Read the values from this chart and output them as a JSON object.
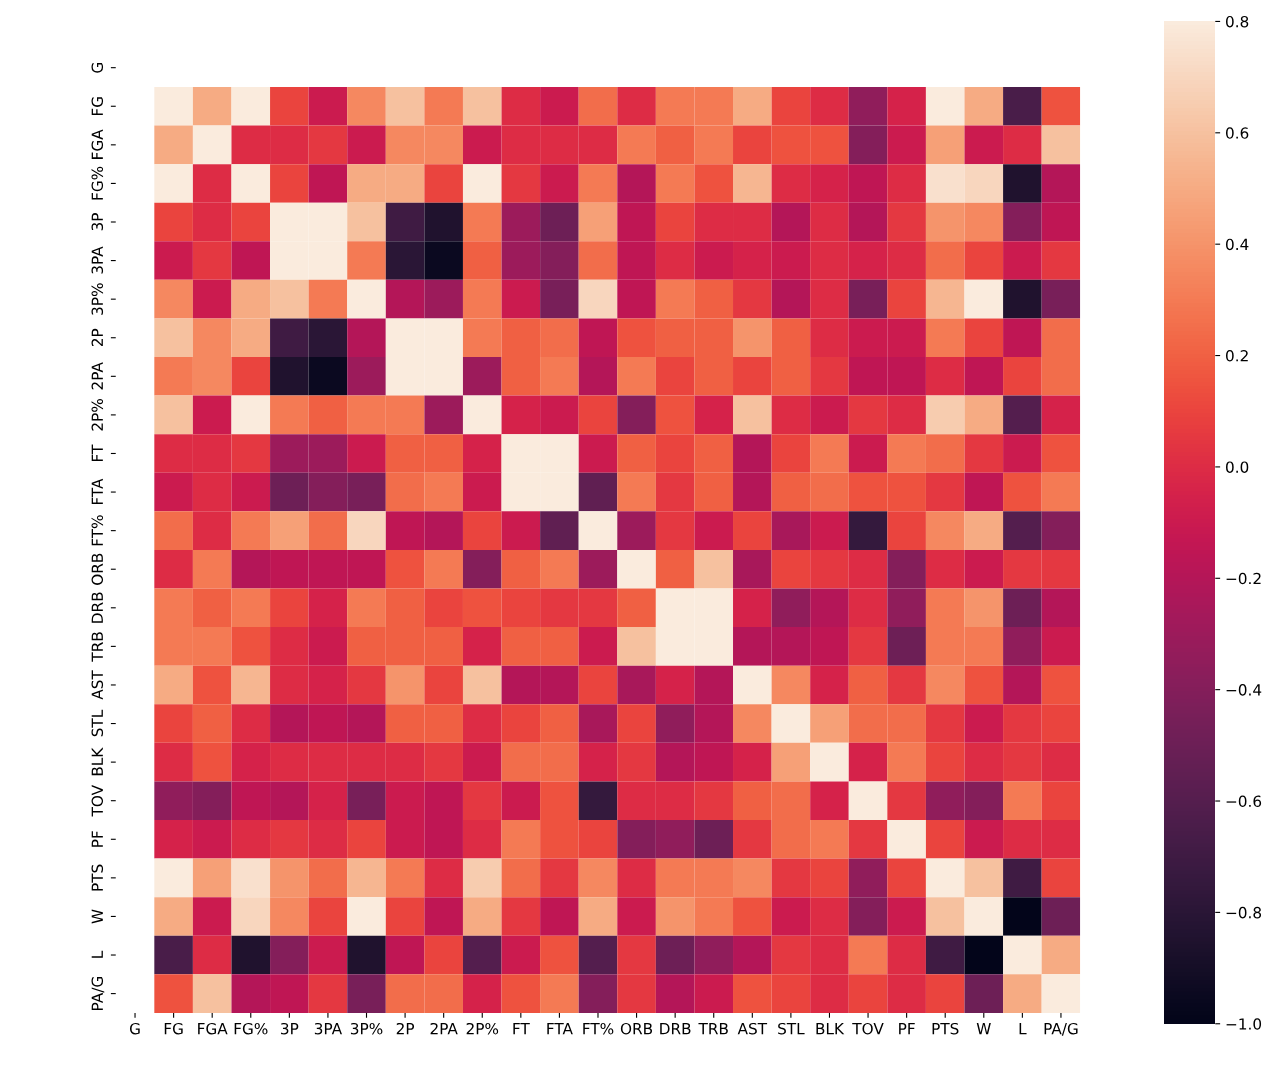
{
  "chart_data": {
    "type": "heatmap",
    "categories": [
      "G",
      "FG",
      "FGA",
      "FG%",
      "3P",
      "3PA",
      "3P%",
      "2P",
      "2PA",
      "2P%",
      "FT",
      "FTA",
      "FT%",
      "ORB",
      "DRB",
      "TRB",
      "AST",
      "STL",
      "BLK",
      "TOV",
      "PF",
      "PTS",
      "W",
      "L",
      "PA/G"
    ],
    "y_categories": [
      "G",
      "FG",
      "FGA",
      "FG%",
      "3P",
      "3PA",
      "3P%",
      "2P",
      "2PA",
      "2P%",
      "FT",
      "FTA",
      "FT%",
      "ORB",
      "DRB",
      "TRB",
      "AST",
      "STL",
      "BLK",
      "TOV",
      "PF",
      "PTS",
      "W",
      "L",
      "PA/G"
    ],
    "cells": [
      [
        null,
        null,
        null,
        null,
        null,
        null,
        null,
        null,
        null,
        null,
        null,
        null,
        null,
        null,
        null,
        null,
        null,
        null,
        null,
        null,
        null,
        null,
        null,
        null,
        null
      ],
      [
        null,
        0.8,
        0.5,
        0.8,
        0.1,
        -0.1,
        0.35,
        0.6,
        0.3,
        0.6,
        0.0,
        -0.1,
        0.25,
        0.0,
        0.3,
        0.3,
        0.5,
        0.1,
        0.0,
        -0.35,
        -0.05,
        0.8,
        0.5,
        -0.65,
        0.15
      ],
      [
        null,
        0.5,
        0.8,
        0.0,
        0.0,
        0.05,
        -0.1,
        0.35,
        0.35,
        -0.1,
        0.0,
        0.0,
        0.0,
        0.3,
        0.2,
        0.3,
        0.1,
        0.15,
        0.15,
        -0.4,
        -0.1,
        0.45,
        -0.1,
        0.0,
        0.6
      ],
      [
        null,
        0.8,
        0.0,
        0.8,
        0.1,
        -0.15,
        0.5,
        0.5,
        0.1,
        0.8,
        0.05,
        -0.1,
        0.3,
        -0.2,
        0.3,
        0.15,
        0.55,
        0.0,
        -0.05,
        -0.15,
        0.0,
        0.75,
        0.7,
        -0.85,
        -0.2
      ],
      [
        null,
        0.1,
        0.0,
        0.1,
        0.8,
        0.8,
        0.6,
        -0.7,
        -0.85,
        0.3,
        -0.3,
        -0.5,
        0.45,
        -0.15,
        0.1,
        0.0,
        0.0,
        -0.2,
        0.0,
        -0.2,
        0.05,
        0.4,
        0.35,
        -0.4,
        -0.15
      ],
      [
        null,
        -0.1,
        0.05,
        -0.15,
        0.8,
        0.8,
        0.3,
        -0.8,
        -0.95,
        0.2,
        -0.3,
        -0.4,
        0.25,
        -0.15,
        0.0,
        -0.1,
        -0.05,
        -0.1,
        0.0,
        -0.05,
        0.0,
        0.25,
        0.1,
        -0.1,
        0.05
      ],
      [
        null,
        0.35,
        -0.1,
        0.5,
        0.6,
        0.3,
        0.8,
        -0.2,
        -0.3,
        0.3,
        -0.1,
        -0.45,
        0.7,
        -0.15,
        0.3,
        0.2,
        0.05,
        -0.2,
        0.0,
        -0.45,
        0.1,
        0.55,
        0.8,
        -0.85,
        -0.45
      ],
      [
        null,
        0.6,
        0.35,
        0.5,
        -0.7,
        -0.8,
        -0.2,
        0.8,
        0.8,
        0.3,
        0.2,
        0.25,
        -0.15,
        0.15,
        0.2,
        0.2,
        0.4,
        0.2,
        0.0,
        -0.1,
        -0.1,
        0.3,
        0.1,
        -0.15,
        0.25
      ],
      [
        null,
        0.3,
        0.35,
        0.1,
        -0.85,
        -0.95,
        -0.3,
        0.8,
        0.8,
        -0.3,
        0.2,
        0.3,
        -0.2,
        0.3,
        0.1,
        0.2,
        0.1,
        0.2,
        0.05,
        -0.15,
        -0.15,
        0.0,
        -0.15,
        0.1,
        0.25
      ],
      [
        null,
        0.6,
        -0.1,
        0.8,
        0.3,
        0.2,
        0.3,
        0.3,
        -0.3,
        0.8,
        -0.05,
        -0.1,
        0.1,
        -0.4,
        0.15,
        -0.05,
        0.6,
        0.0,
        -0.1,
        0.05,
        0.0,
        0.65,
        0.5,
        -0.6,
        -0.05
      ],
      [
        null,
        0.0,
        0.0,
        0.05,
        -0.3,
        -0.3,
        -0.1,
        0.2,
        0.2,
        -0.05,
        0.8,
        0.8,
        -0.1,
        0.2,
        0.1,
        0.2,
        -0.2,
        0.1,
        0.3,
        -0.1,
        0.3,
        0.25,
        0.05,
        -0.1,
        0.15
      ],
      [
        null,
        -0.1,
        0.0,
        -0.1,
        -0.5,
        -0.4,
        -0.45,
        0.25,
        0.3,
        -0.1,
        0.8,
        0.8,
        -0.55,
        0.3,
        0.05,
        0.2,
        -0.2,
        0.2,
        0.25,
        0.15,
        0.15,
        0.05,
        -0.15,
        0.15,
        0.3
      ],
      [
        null,
        0.25,
        0.0,
        0.3,
        0.45,
        0.25,
        0.7,
        -0.15,
        -0.2,
        0.1,
        -0.1,
        -0.55,
        0.8,
        -0.3,
        0.05,
        -0.1,
        0.1,
        -0.25,
        -0.1,
        -0.75,
        0.1,
        0.35,
        0.5,
        -0.6,
        -0.4
      ],
      [
        null,
        0.0,
        0.3,
        -0.2,
        -0.15,
        -0.15,
        -0.15,
        0.15,
        0.3,
        -0.4,
        0.2,
        0.3,
        -0.3,
        0.8,
        0.2,
        0.6,
        -0.25,
        0.1,
        0.05,
        0.0,
        -0.4,
        0.0,
        -0.1,
        0.05,
        0.05
      ],
      [
        null,
        0.3,
        0.2,
        0.3,
        0.1,
        -0.05,
        0.3,
        0.2,
        0.1,
        0.15,
        0.1,
        0.05,
        0.05,
        0.2,
        0.8,
        0.8,
        -0.05,
        -0.35,
        -0.2,
        0.0,
        -0.35,
        0.3,
        0.4,
        -0.5,
        -0.2
      ],
      [
        null,
        0.3,
        0.3,
        0.15,
        0.0,
        -0.1,
        0.2,
        0.2,
        0.2,
        -0.05,
        0.2,
        0.2,
        -0.1,
        0.6,
        0.8,
        0.8,
        -0.2,
        -0.2,
        -0.15,
        0.05,
        -0.5,
        0.3,
        0.3,
        -0.35,
        -0.1
      ],
      [
        null,
        0.5,
        0.15,
        0.55,
        0.0,
        -0.05,
        0.05,
        0.4,
        0.1,
        0.6,
        -0.2,
        -0.2,
        0.1,
        -0.25,
        -0.05,
        -0.2,
        0.8,
        0.35,
        -0.05,
        0.2,
        0.05,
        0.35,
        0.15,
        -0.2,
        0.15
      ],
      [
        null,
        0.1,
        0.2,
        0.0,
        -0.2,
        -0.15,
        -0.2,
        0.2,
        0.2,
        0.0,
        0.1,
        0.2,
        -0.25,
        0.1,
        -0.35,
        -0.2,
        0.35,
        0.8,
        0.45,
        0.25,
        0.25,
        0.05,
        -0.1,
        0.05,
        0.1
      ],
      [
        null,
        0.0,
        0.15,
        -0.05,
        0.0,
        0.0,
        0.0,
        0.0,
        0.05,
        -0.1,
        0.25,
        0.25,
        -0.05,
        0.05,
        -0.2,
        -0.15,
        -0.05,
        0.45,
        0.8,
        -0.05,
        0.3,
        0.1,
        0.0,
        0.05,
        0.0
      ],
      [
        null,
        -0.35,
        -0.4,
        -0.15,
        -0.2,
        -0.05,
        -0.45,
        -0.1,
        -0.15,
        0.05,
        -0.1,
        0.15,
        -0.75,
        0.0,
        0.0,
        0.05,
        0.2,
        0.25,
        -0.05,
        0.8,
        0.05,
        -0.35,
        -0.4,
        0.3,
        0.1
      ],
      [
        null,
        -0.05,
        -0.1,
        0.0,
        0.05,
        0.0,
        0.1,
        -0.1,
        -0.15,
        0.0,
        0.3,
        0.15,
        0.1,
        -0.4,
        -0.35,
        -0.5,
        0.05,
        0.25,
        0.3,
        0.05,
        0.8,
        0.1,
        -0.1,
        0.0,
        0.0
      ],
      [
        null,
        0.8,
        0.45,
        0.75,
        0.4,
        0.25,
        0.55,
        0.3,
        0.0,
        0.65,
        0.25,
        0.05,
        0.35,
        0.0,
        0.3,
        0.3,
        0.35,
        0.05,
        0.1,
        -0.35,
        0.1,
        0.8,
        0.6,
        -0.7,
        0.1
      ],
      [
        null,
        0.5,
        -0.1,
        0.7,
        0.35,
        0.1,
        0.8,
        0.1,
        -0.15,
        0.5,
        0.05,
        -0.15,
        0.5,
        -0.1,
        0.4,
        0.3,
        0.15,
        -0.1,
        0.0,
        -0.4,
        -0.1,
        0.6,
        0.8,
        -1.0,
        -0.5
      ],
      [
        null,
        -0.65,
        0.0,
        -0.85,
        -0.4,
        -0.1,
        -0.85,
        -0.15,
        0.1,
        -0.6,
        -0.1,
        0.15,
        -0.6,
        0.05,
        -0.5,
        -0.35,
        -0.2,
        0.05,
        0.0,
        0.3,
        0.0,
        -0.7,
        -1.0,
        0.8,
        0.5
      ],
      [
        null,
        0.15,
        0.6,
        -0.2,
        -0.15,
        0.05,
        -0.45,
        0.25,
        0.25,
        -0.05,
        0.15,
        0.3,
        -0.4,
        0.05,
        -0.2,
        -0.1,
        0.15,
        0.1,
        0.0,
        0.1,
        0.0,
        0.1,
        -0.5,
        0.5,
        0.8
      ]
    ],
    "clim": [
      -1.0,
      0.8
    ],
    "cticks": [
      {
        "value": -1.0,
        "label": "−1.0"
      },
      {
        "value": -0.8,
        "label": "−0.8"
      },
      {
        "value": -0.6,
        "label": "−0.6"
      },
      {
        "value": -0.4,
        "label": "−0.4"
      },
      {
        "value": -0.2,
        "label": "−0.2"
      },
      {
        "value": 0.0,
        "label": "0.0"
      },
      {
        "value": 0.2,
        "label": "0.2"
      },
      {
        "value": 0.4,
        "label": "0.4"
      },
      {
        "value": 0.6,
        "label": "0.6"
      },
      {
        "value": 0.8,
        "label": "0.8"
      }
    ]
  }
}
